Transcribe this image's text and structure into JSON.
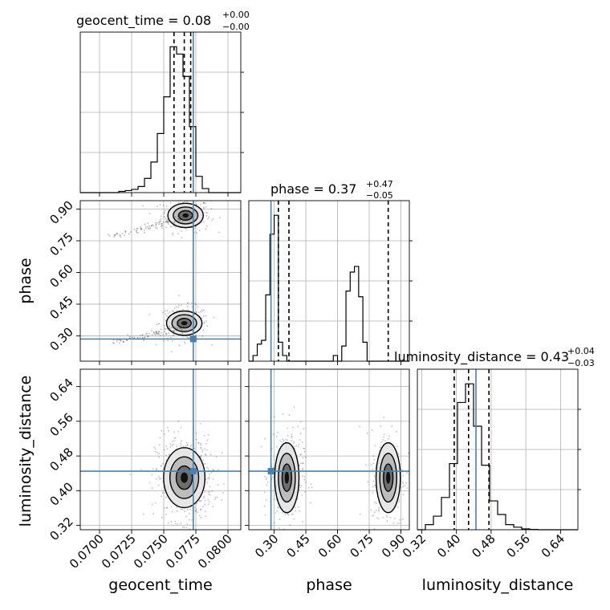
{
  "chart_data": {
    "type": "corner",
    "parameters": [
      {
        "name": "geocent_time",
        "label": "geocent_time",
        "range": [
          0.0685,
          0.081
        ],
        "ticks": [
          "0.0700",
          "0.0725",
          "0.0750",
          "0.0775",
          "0.0800"
        ],
        "tick_values": [
          0.07,
          0.0725,
          0.075,
          0.0775,
          0.08
        ],
        "truth": 0.0773,
        "title": {
          "main": "geocent_time = 0.08",
          "sup": "+0.00",
          "sub": "−0.00"
        },
        "quantiles": [
          0.0758,
          0.0766,
          0.0771
        ],
        "histogram": {
          "edges_start": 0.0685,
          "bin_width": 0.0005,
          "heights": [
            0,
            0,
            0,
            0,
            0,
            0,
            0.3,
            0.5,
            0.8,
            1.5,
            3.5,
            7.5,
            14.5,
            23.5,
            35.8,
            34.0,
            28.5,
            16.2,
            4.0,
            1.0,
            0,
            0,
            0,
            0,
            0
          ]
        }
      },
      {
        "name": "phase",
        "label": "phase",
        "range": [
          0.18,
          0.94
        ],
        "ticks": [
          "0.30",
          "0.45",
          "0.60",
          "0.75",
          "0.90"
        ],
        "tick_values": [
          0.3,
          0.45,
          0.6,
          0.75,
          0.9
        ],
        "truth": 0.285,
        "title": {
          "main": "phase = 0.37",
          "sup": "+0.47",
          "sub": "−0.05"
        },
        "quantiles": [
          0.32,
          0.37,
          0.84
        ],
        "histogram": {
          "edges_start": 0.18,
          "bin_width": 0.02,
          "heights": [
            0,
            0.3,
            0.9,
            1.1,
            3.5,
            6.7,
            7.7,
            1.0,
            0.3,
            0,
            0,
            0,
            0,
            0,
            0,
            0,
            0,
            0,
            0,
            0,
            0.3,
            0,
            0.8,
            3.7,
            4.7,
            5.0,
            3.4,
            1.0,
            0,
            0,
            0,
            0,
            0,
            0,
            0,
            0,
            0,
            0
          ]
        }
      },
      {
        "name": "luminosity_distance",
        "label": "luminosity_distance",
        "range": [
          0.31,
          0.68
        ],
        "ticks": [
          "0.32",
          "0.40",
          "0.48",
          "0.56",
          "0.64"
        ],
        "tick_values": [
          0.32,
          0.4,
          0.48,
          0.56,
          0.64
        ],
        "truth": 0.445,
        "title": {
          "main": "luminosity_distance = 0.43",
          "sup": "+0.04",
          "sub": "−0.03"
        },
        "quantiles": [
          0.395,
          0.428,
          0.475
        ],
        "histogram": {
          "edges_start": 0.31,
          "bin_width": 0.0185,
          "heights": [
            0,
            0.3,
            0.8,
            1.9,
            3.9,
            7.5,
            8.6,
            6.1,
            3.8,
            1.7,
            0.9,
            0.3,
            0.15,
            0.05,
            0.02,
            0,
            0,
            0,
            0,
            0
          ]
        }
      }
    ],
    "grid": true,
    "truth_color": "#4682b4",
    "contour_color": "#000000",
    "quantile_line_color": "#000000"
  }
}
